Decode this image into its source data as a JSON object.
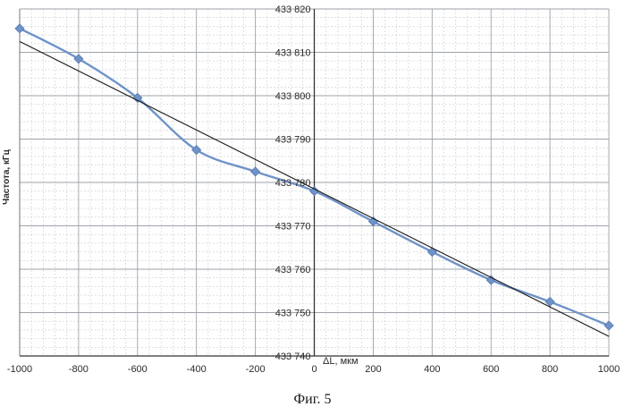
{
  "figure_caption": "Фиг. 5",
  "chart_data": {
    "type": "line",
    "xlabel": "ΔL, мкм",
    "ylabel": "Частота, кГц",
    "xlim": [
      -1000,
      1000
    ],
    "ylim": [
      433740,
      433820
    ],
    "x_ticks": [
      -1000,
      -800,
      -600,
      -400,
      -200,
      0,
      200,
      400,
      600,
      800,
      1000
    ],
    "x_tick_labels": [
      "-1000",
      "-800",
      "-600",
      "-400",
      "-200",
      "0",
      "200",
      "400",
      "600",
      "800",
      "1000"
    ],
    "y_ticks": [
      433740,
      433750,
      433760,
      433770,
      433780,
      433790,
      433800,
      433810,
      433820
    ],
    "y_tick_labels": [
      "433 740",
      "433 750",
      "433 760",
      "433 770",
      "433 780",
      "433 790",
      "433 800",
      "433 810",
      "433 820"
    ],
    "grid": true,
    "minor_grid": true,
    "series": [
      {
        "kind": "measured",
        "color": "#6f93c8",
        "marker": "diamond",
        "x": [
          -1000,
          -800,
          -600,
          -400,
          -200,
          0,
          200,
          400,
          600,
          800,
          1000
        ],
        "y": [
          433815.5,
          433808.5,
          433799.5,
          433787.5,
          433782.5,
          433778.0,
          433771.0,
          433764.0,
          433757.5,
          433752.5,
          433747.0
        ]
      },
      {
        "kind": "linear_fit",
        "color": "#1a1a1a",
        "marker": "none",
        "x": [
          -1000,
          1000
        ],
        "y": [
          433812.5,
          433744.5
        ]
      }
    ]
  }
}
